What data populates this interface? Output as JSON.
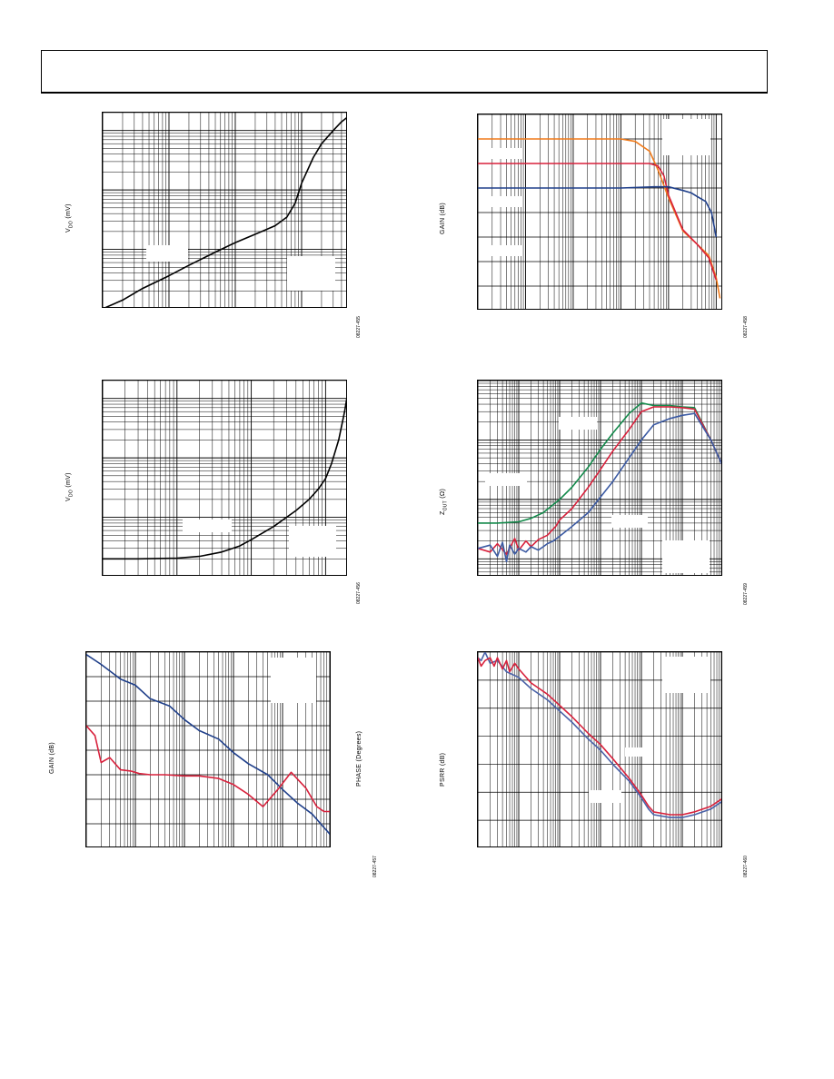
{
  "panels": [
    {
      "id": "p1",
      "ylabel": "V",
      "ylabel_sub": "DO",
      "ylabel_suffix": " (mV)",
      "fig_id": "08227-455",
      "chart_data": {
        "type": "line",
        "xscale": "log",
        "yscale": "log",
        "series": [
          {
            "color": "#000000",
            "x": [
              0.001,
              0.002,
              0.004,
              0.01,
              0.02,
              0.05,
              0.1,
              0.2,
              0.4,
              0.6,
              0.8,
              1,
              1.5,
              2,
              3,
              4,
              5
            ],
            "y": [
              1.0,
              1.4,
              2.2,
              3.6,
              5.4,
              9,
              13,
              18,
              25,
              35,
              60,
              130,
              350,
              600,
              1000,
              1400,
              1700
            ]
          }
        ]
      }
    },
    {
      "id": "p2",
      "ylabel": "V",
      "ylabel_sub": "DO",
      "ylabel_suffix": " (mV)",
      "fig_id": "08227-456",
      "chart_data": {
        "type": "line",
        "xscale": "log",
        "yscale": "log",
        "series": [
          {
            "color": "#000000",
            "x": [
              0.001,
              0.003,
              0.01,
              0.02,
              0.04,
              0.07,
              0.1,
              0.2,
              0.4,
              0.6,
              0.8,
              1.0,
              1.2,
              1.5,
              1.8,
              2.0
            ],
            "y": [
              2,
              2,
              2.05,
              2.2,
              2.6,
              3.3,
              4.2,
              7,
              13,
              20,
              30,
              45,
              80,
              200,
              600,
              1300
            ]
          }
        ]
      }
    },
    {
      "id": "p3",
      "ylabel": "GAIN (dB)",
      "ylabel_right": "PHASE (Degrees)",
      "fig_id": "08227-457",
      "chart_data": {
        "type": "line",
        "xscale": "log",
        "series": [
          {
            "color": "#1f3f8a",
            "x": [
              10,
              20,
              50,
              100,
              200,
              500,
              1000,
              2000,
              5000,
              10000,
              20000,
              50000,
              100000,
              200000,
              400000,
              700000,
              1000000
            ],
            "y": [
              9.8,
              9,
              7.8,
              7.3,
              6.2,
              5.6,
              4.5,
              3.6,
              2.9,
              1.8,
              0.9,
              0,
              -1.2,
              -2.3,
              -3.2,
              -4.3,
              -5
            ]
          },
          {
            "color": "#d8213c",
            "x": [
              10,
              15,
              20,
              30,
              50,
              80,
              120,
              200,
              400,
              1000,
              2000,
              5000,
              10000,
              20000,
              40000,
              80000,
              150000,
              300000,
              500000,
              700000,
              1000000
            ],
            "y": [
              4,
              3.2,
              1,
              1.4,
              0.4,
              0.3,
              0.1,
              0,
              0,
              -0.1,
              -0.1,
              -0.3,
              -0.8,
              -1.6,
              -2.6,
              -1.2,
              0.2,
              -1.1,
              -2.6,
              -3.0,
              -3.0
            ]
          }
        ]
      }
    },
    {
      "id": "p4",
      "ylabel": "GAIN (dB)",
      "fig_id": "08227-458",
      "chart_data": {
        "type": "line",
        "xscale": "log",
        "series": [
          {
            "color": "#f07a1a",
            "x": [
              10,
              100,
              1000,
              10000,
              20000,
              40000,
              60000,
              100000,
              200000,
              400000,
              700000,
              1000000,
              1200000
            ],
            "y": [
              6,
              6,
              6,
              6,
              5.8,
              5,
              3.5,
              1.2,
              -1.5,
              -2.6,
              -3.5,
              -5.3,
              -7
            ]
          },
          {
            "color": "#d8213c",
            "x": [
              10,
              100,
              1000,
              10000,
              40000,
              60000,
              80000,
              100000,
              200000,
              400000,
              700000,
              1000000
            ],
            "y": [
              4,
              4,
              4,
              4,
              4,
              3.8,
              3,
              1.4,
              -1.4,
              -2.6,
              -3.7,
              -5.5
            ]
          },
          {
            "color": "#1f3f8a",
            "x": [
              10,
              100,
              1000,
              10000,
              50000,
              100000,
              200000,
              300000,
              400000,
              600000,
              800000,
              1000000
            ],
            "y": [
              2,
              2,
              2,
              2,
              2.1,
              2.1,
              1.8,
              1.6,
              1.3,
              0.9,
              0,
              -2
            ]
          }
        ]
      }
    },
    {
      "id": "p5",
      "ylabel": "Z",
      "ylabel_sub": "OUT",
      "ylabel_suffix": " (Ω)",
      "fig_id": "08227-459",
      "chart_data": {
        "type": "line",
        "xscale": "log",
        "yscale": "log",
        "series": [
          {
            "color": "#138a4b",
            "x": [
              10,
              30,
              100,
              200,
              400,
              1000,
              2000,
              5000,
              10000,
              20000,
              50000,
              100000,
              200000,
              500000,
              1000000,
              2000000,
              5000000,
              10000000
            ],
            "y": [
              0.004,
              0.004,
              0.0042,
              0.0048,
              0.006,
              0.01,
              0.016,
              0.035,
              0.07,
              0.13,
              0.28,
              0.42,
              0.38,
              0.38,
              0.36,
              0.35,
              0.1,
              0.035
            ]
          },
          {
            "color": "#d8213c",
            "x": [
              10,
              20,
              30,
              50,
              80,
              100,
              150,
              200,
              300,
              500,
              800,
              1000,
              2000,
              5000,
              10000,
              20000,
              50000,
              100000,
              200000,
              500000,
              1000000,
              2000000,
              5000000,
              10000000
            ],
            "y": [
              0.0015,
              0.0013,
              0.0018,
              0.0012,
              0.0022,
              0.0014,
              0.002,
              0.0016,
              0.0021,
              0.0025,
              0.0035,
              0.0045,
              0.007,
              0.016,
              0.032,
              0.065,
              0.15,
              0.3,
              0.36,
              0.36,
              0.35,
              0.33,
              0.1,
              0.035
            ]
          },
          {
            "color": "#3b5aa3",
            "x": [
              10,
              20,
              30,
              40,
              50,
              60,
              80,
              100,
              150,
              200,
              300,
              400,
              500,
              700,
              1000,
              2000,
              5000,
              10000,
              20000,
              50000,
              100000,
              200000,
              500000,
              1000000,
              2000000,
              5000000,
              10000000
            ],
            "y": [
              0.0015,
              0.0017,
              0.0011,
              0.0019,
              0.0009,
              0.0017,
              0.0012,
              0.0015,
              0.0013,
              0.0016,
              0.0014,
              0.0016,
              0.0018,
              0.002,
              0.0024,
              0.0035,
              0.006,
              0.011,
              0.02,
              0.05,
              0.1,
              0.18,
              0.23,
              0.26,
              0.28,
              0.1,
              0.035
            ]
          }
        ]
      }
    },
    {
      "id": "p6",
      "ylabel": "PSRR (dB)",
      "fig_id": "08227-460",
      "chart_data": {
        "type": "line",
        "xscale": "log",
        "series": [
          {
            "color": "#4a62a8",
            "x": [
              10,
              12,
              15,
              20,
              30,
              50,
              100,
              200,
              500,
              1000,
              2000,
              5000,
              10000,
              20000,
              50000,
              100000,
              150000,
              200000,
              500000,
              1000000,
              2000000,
              5000000,
              10000000
            ],
            "y": [
              -12,
              -13,
              -10,
              -14,
              -13,
              -17,
              -19,
              -23,
              -27,
              -31,
              -35,
              -41,
              -45,
              -50,
              -56,
              -62,
              -66,
              -68,
              -69,
              -69,
              -68,
              -66,
              -63
            ]
          },
          {
            "color": "#d8213c",
            "x": [
              10,
              12,
              15,
              20,
              25,
              30,
              40,
              50,
              60,
              80,
              100,
              200,
              500,
              1000,
              2000,
              5000,
              10000,
              20000,
              50000,
              100000,
              150000,
              200000,
              500000,
              1000000,
              2000000,
              5000000,
              10000000
            ],
            "y": [
              -12,
              -15,
              -13,
              -12,
              -15,
              -12,
              -16,
              -13,
              -17,
              -14,
              -16,
              -21,
              -25,
              -29,
              -33,
              -39,
              -43,
              -48,
              -55,
              -61,
              -65,
              -67,
              -68,
              -68,
              -67,
              -65,
              -62
            ]
          }
        ]
      }
    }
  ]
}
